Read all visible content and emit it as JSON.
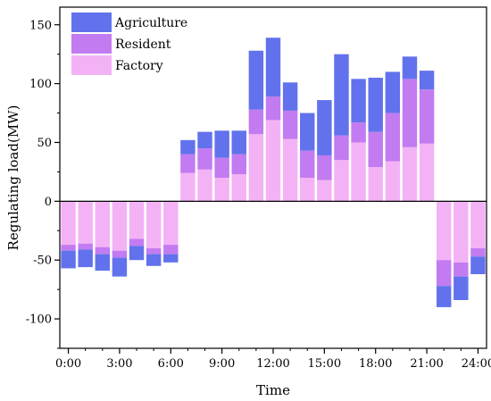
{
  "chart_data": {
    "type": "bar",
    "stacked": true,
    "title": "",
    "xlabel": "Time",
    "ylabel": "Regulating load(MW)",
    "ylim": [
      -125,
      165
    ],
    "xlim": [
      -0.5,
      24.5
    ],
    "yticks": [
      -100,
      -50,
      0,
      50,
      100,
      150
    ],
    "xticks": [
      0,
      3,
      6,
      9,
      12,
      15,
      18,
      21,
      24
    ],
    "xtick_labels": [
      "0:00",
      "3:00",
      "6:00",
      "9:00",
      "12:00",
      "15:00",
      "18:00",
      "21:00",
      "24:00"
    ],
    "legend_position": "top-left",
    "grid": false,
    "x": [
      0,
      1,
      2,
      3,
      4,
      5,
      6,
      7,
      8,
      9,
      10,
      11,
      12,
      13,
      14,
      15,
      16,
      17,
      18,
      19,
      20,
      21,
      22,
      23,
      24
    ],
    "series": [
      {
        "name": "Factory",
        "color": "#f4b2f6",
        "values": [
          -37,
          -36,
          -39,
          -42,
          -32,
          -40,
          -37,
          24,
          27,
          20,
          23,
          57,
          69,
          53,
          20,
          18,
          35,
          50,
          29,
          34,
          46,
          49,
          -50,
          -52,
          -40
        ]
      },
      {
        "name": "Resident",
        "color": "#c27bf0",
        "values": [
          -5,
          -5,
          -6,
          -6,
          -6,
          -5,
          -8,
          16,
          18,
          17,
          17,
          21,
          20,
          24,
          23,
          21,
          21,
          17,
          30,
          41,
          58,
          46,
          -22,
          -12,
          -7
        ]
      },
      {
        "name": "Agriculture",
        "color": "#6272ec",
        "values": [
          -15,
          -15,
          -14,
          -16,
          -12,
          -10,
          -7,
          12,
          14,
          23,
          20,
          50,
          50,
          24,
          32,
          47,
          69,
          37,
          46,
          35,
          19,
          16,
          -18,
          -20,
          -15
        ]
      }
    ],
    "legend": [
      "Agriculture",
      "Resident",
      "Factory"
    ]
  }
}
